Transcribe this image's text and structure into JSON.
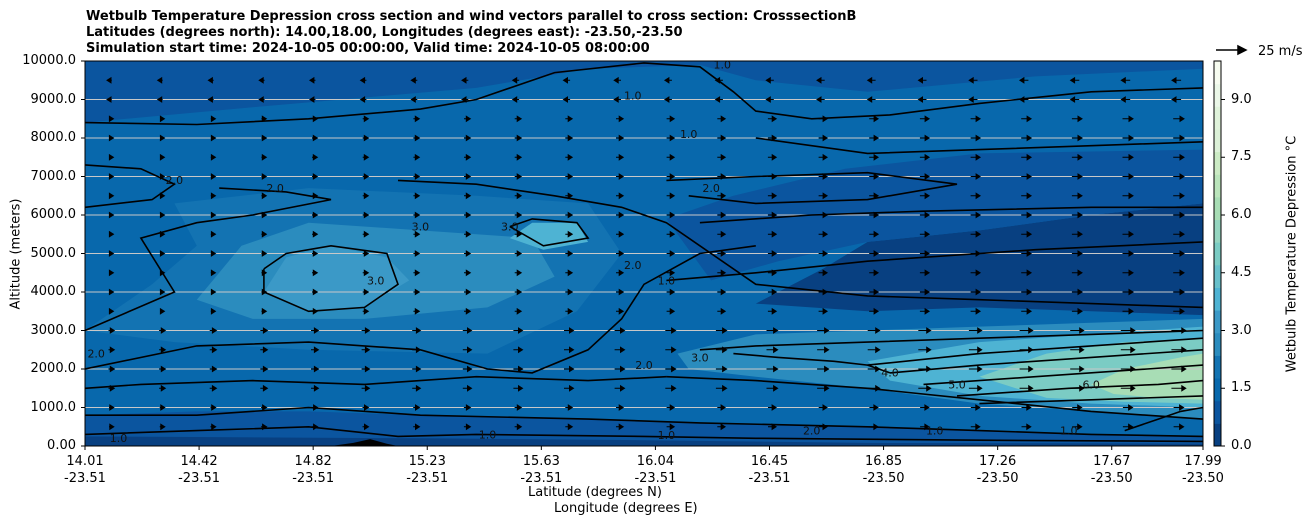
{
  "chart_data": {
    "type": "contour",
    "title_lines": [
      "Wetbulb Temperature Depression cross section and wind vectors parallel to cross section: CrosssectionB",
      "Latitudes (degrees north): 14.00,18.00, Longitudes (degrees east): -23.50,-23.50",
      "Simulation start time: 2024-10-05 00:00:00, Valid time: 2024-10-05 08:00:00"
    ],
    "ylabel": "Altitude (meters)",
    "xlabel_lat": "Latitude (degrees N)",
    "xlabel_lon": "Longitude (degrees E)",
    "ylim": [
      0,
      10000
    ],
    "yticks": [
      "0.00",
      "1000.0",
      "2000.0",
      "3000.0",
      "4000.0",
      "5000.0",
      "6000.0",
      "7000.0",
      "8000.0",
      "9000.0",
      "10000.0"
    ],
    "xticks": [
      {
        "lat": "14.01",
        "lon": "-23.51"
      },
      {
        "lat": "14.42",
        "lon": "-23.51"
      },
      {
        "lat": "14.82",
        "lon": "-23.51"
      },
      {
        "lat": "15.23",
        "lon": "-23.51"
      },
      {
        "lat": "15.63",
        "lon": "-23.51"
      },
      {
        "lat": "16.04",
        "lon": "-23.51"
      },
      {
        "lat": "16.45",
        "lon": "-23.51"
      },
      {
        "lat": "16.85",
        "lon": "-23.50"
      },
      {
        "lat": "17.26",
        "lon": "-23.50"
      },
      {
        "lat": "17.67",
        "lon": "-23.50"
      },
      {
        "lat": "17.99",
        "lon": "-23.50"
      }
    ],
    "colorbar": {
      "label": "Wetbulb Temperature Depression $^\\circ$C",
      "range": [
        0,
        10
      ],
      "ticks": [
        "0.0",
        "1.5",
        "3.0",
        "4.5",
        "6.0",
        "7.5",
        "9.0"
      ],
      "colors": [
        "#084081",
        "#0b559f",
        "#0868ac",
        "#1373b2",
        "#2b8cbe",
        "#3b99c7",
        "#4eb3d3",
        "#68c0cb",
        "#7bccc4",
        "#95d5c0",
        "#a8ddb5",
        "#bbe5bc",
        "#ccebc5",
        "#dcf1d8",
        "#e0f3db",
        "#ebf7e8",
        "#f7fcf0"
      ]
    },
    "contour_labels": [
      "2.0",
      "2.0",
      "3.0",
      "3.0",
      "3.0",
      "2.0",
      "1.0",
      "1.0",
      "1.0",
      "2.0",
      "3.0",
      "4.0",
      "5.0",
      "6.0",
      "1.0",
      "2.0",
      "1.0",
      "2.0",
      "1.0",
      "2.0",
      "1.0",
      "1.0",
      "1.0"
    ],
    "quiver_key": "25 m/s",
    "grid": "horizontal"
  }
}
